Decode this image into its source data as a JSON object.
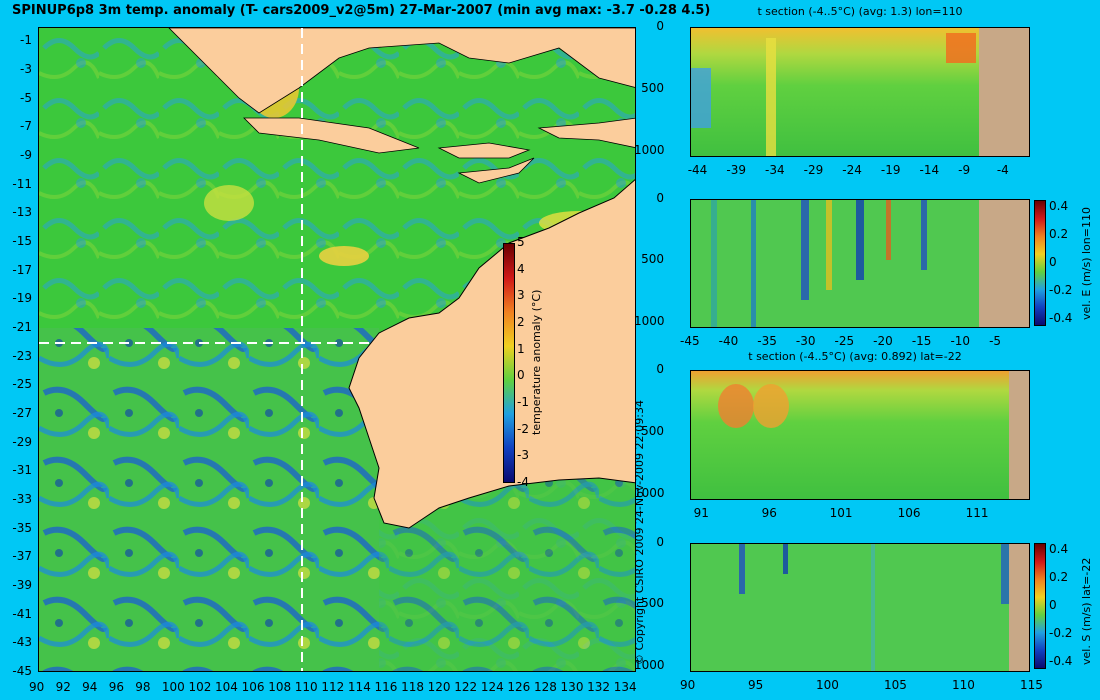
{
  "main_title": "SPINUP6p8 3m temp. anomaly (T- cars2009_v2@5m) 27-Mar-2007 (min avg max: -3.7 -0.28 4.5)",
  "copyright": "© Copyright CSIRO 2009   24-Nov-2009 22:09:34",
  "colors": {
    "background": "#00c8f5",
    "land": "#fbcd9c",
    "section_land": "#c8a887"
  },
  "chart_data": [
    {
      "type": "heatmap",
      "title": "SPINUP6p8 3m temp. anomaly (T- cars2009_v2@5m) 27-Mar-2007 (min avg max: -3.7 -0.28 4.5)",
      "x_ticks": [
        "90",
        "92",
        "94",
        "96",
        "98",
        "100",
        "102",
        "104",
        "106",
        "108",
        "110",
        "112",
        "114",
        "116",
        "118",
        "120",
        "122",
        "124",
        "126",
        "128",
        "130",
        "132",
        "134"
      ],
      "y_ticks": [
        "-1",
        "-3",
        "-5",
        "-7",
        "-9",
        "-11",
        "-13",
        "-15",
        "-17",
        "-19",
        "-21",
        "-23",
        "-25",
        "-27",
        "-29",
        "-31",
        "-33",
        "-35",
        "-37",
        "-39",
        "-41",
        "-43",
        "-45"
      ],
      "xlim": [
        90,
        135
      ],
      "ylim": [
        -45,
        0
      ],
      "colorbar": {
        "label": "temperature anomaly (°C)",
        "ticks": [
          "5",
          "4",
          "3",
          "2",
          "1",
          "0",
          "-1",
          "-2",
          "-3",
          "-4"
        ],
        "range": [
          -4,
          5
        ]
      },
      "section_lines": {
        "lon": 110,
        "lat": -22
      },
      "stats": {
        "min": -3.7,
        "avg": -0.28,
        "max": 4.5
      }
    },
    {
      "type": "heatmap",
      "title": "t section (-4..5°C) (avg: 1.3) lon=110",
      "x_ticks": [
        "-44",
        "-39",
        "-34",
        "-29",
        "-24",
        "-19",
        "-14",
        "-9",
        "-4"
      ],
      "y_ticks": [
        "0",
        "500",
        "1000"
      ],
      "xlim": [
        -45,
        -1
      ],
      "ylim": [
        1050,
        0
      ]
    },
    {
      "type": "heatmap",
      "title": "",
      "x_ticks": [
        "-45",
        "-40",
        "-35",
        "-30",
        "-25",
        "-20",
        "-15",
        "-10",
        "-5"
      ],
      "y_ticks": [
        "0",
        "500",
        "1000"
      ],
      "xlim": [
        -45,
        -1
      ],
      "ylim": [
        1050,
        0
      ],
      "colorbar": {
        "label": "vel. E (m/s) lon=110",
        "ticks": [
          "0.4",
          "0.2",
          "0",
          "-0.2",
          "-0.4"
        ],
        "range": [
          -0.45,
          0.45
        ]
      }
    },
    {
      "type": "heatmap",
      "title": "t section (-4..5°C) (avg: 0.892) lat=-22",
      "x_ticks": [
        "91",
        "96",
        "101",
        "106",
        "111"
      ],
      "y_ticks": [
        "0",
        "500",
        "1000"
      ],
      "xlim": [
        90,
        115
      ],
      "ylim": [
        1050,
        0
      ]
    },
    {
      "type": "heatmap",
      "title": "",
      "x_ticks": [
        "90",
        "95",
        "100",
        "105",
        "110",
        "115"
      ],
      "y_ticks": [
        "0",
        "500",
        "1000"
      ],
      "xlim": [
        90,
        115
      ],
      "ylim": [
        1050,
        0
      ],
      "colorbar": {
        "label": "vel. S (m/s) lat=-22",
        "ticks": [
          "0.4",
          "0.2",
          "0",
          "-0.2",
          "-0.4"
        ],
        "range": [
          -0.45,
          0.45
        ]
      }
    }
  ]
}
